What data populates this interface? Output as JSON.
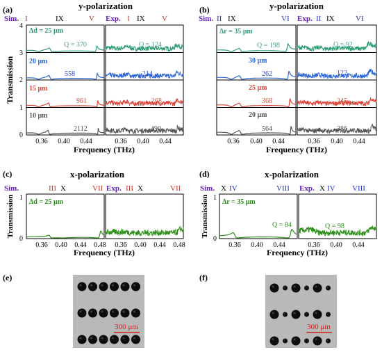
{
  "colors": {
    "sim_label": "#6a1fc2",
    "roman_red": "#c0392b",
    "roman_blue": "#2233bb",
    "q_teal": "#4a9d93",
    "q_blue": "#2747c9",
    "q_red": "#c8503a",
    "q_gray": "#4a4a4a",
    "series": [
      "#2e9e73",
      "#2e67d6",
      "#d8453a",
      "#555555"
    ],
    "x_green": "#2f8f1c",
    "bar_red": "#d42020",
    "photo_bg": "#b9b9b9"
  },
  "panels": {
    "a": {
      "letter": "(a)",
      "title": "y-polarization",
      "sim_tag": "Sim.",
      "exp_tag": "Exp.",
      "roman": [
        "I",
        "IX",
        "V"
      ],
      "ylabel": "Transmission",
      "xlabel": "Frequency (THz)",
      "yticks": [
        "0",
        "1",
        "2",
        "3",
        "4"
      ],
      "xticks": [
        "0.36",
        "0.40",
        "0.44"
      ],
      "offsets": [
        "Δd = 25 μm",
        "20 μm",
        "15 μm",
        "10 μm"
      ],
      "sim_q": [
        "Q = 370",
        "558",
        "961",
        "2112"
      ],
      "exp_q": [
        "Q = 124",
        "214",
        "268",
        "490"
      ]
    },
    "b": {
      "letter": "(b)",
      "title": "y-polarization",
      "sim_tag": "Sim.",
      "exp_tag": "Exp.",
      "roman": [
        "II",
        "IX",
        "VI"
      ],
      "xlabel": "Frequency (THz)",
      "xticks": [
        "0.36",
        "0.40",
        "0.44"
      ],
      "offsets": [
        "Δr = 35 μm",
        "30 μm",
        "25 μm",
        "20 μm"
      ],
      "sim_q": [
        "Q = 198",
        "262",
        "368",
        "564"
      ],
      "exp_q": [
        "Q = 92",
        "122",
        "245",
        "386"
      ]
    },
    "c": {
      "letter": "(c)",
      "title": "x-polarization",
      "sim_tag": "Sim.",
      "exp_tag": "Exp.",
      "roman": [
        "III",
        "X",
        "VII"
      ],
      "ylabel": "Transmission",
      "xlabel": "Frequency (THz)",
      "yticks": [
        "0",
        "1"
      ],
      "xticks": [
        "0.36",
        "0.40",
        "0.44",
        "0.48"
      ],
      "offset": "Δd = 25 μm"
    },
    "d": {
      "letter": "(d)",
      "title": "x-polarization",
      "sim_tag": "Sim.",
      "exp_tag": "Exp.",
      "roman": [
        "X",
        "IV",
        "VIII"
      ],
      "ylabel": "Transmission",
      "xlabel": "Frequency (THz)",
      "yticks": [
        "0",
        "1"
      ],
      "xticks": [
        "0.36",
        "0.40",
        "0.44"
      ],
      "offset": "Δr = 35 μm",
      "sim_q": "Q = 84",
      "exp_q": "Q = 98"
    },
    "e": {
      "letter": "(e)",
      "scale": "300 μm"
    },
    "f": {
      "letter": "(f)",
      "scale": "300 μm"
    }
  },
  "chart_data": [
    {
      "type": "line",
      "panel": "a",
      "title": "y-polarization",
      "xlabel": "Frequency (THz)",
      "ylabel": "Transmission",
      "xlim": [
        0.33,
        0.47
      ],
      "ylim": [
        0,
        4
      ],
      "series": [
        {
          "name": "Δd = 25 μm",
          "sim_resonances_THz": [
            0.353,
            0.373,
            0.456
          ],
          "Q_sim": 370,
          "Q_exp": 124
        },
        {
          "name": "20 μm",
          "sim_resonances_THz": [
            0.353,
            0.372,
            0.457
          ],
          "Q_sim": 558,
          "Q_exp": 214
        },
        {
          "name": "15 μm",
          "sim_resonances_THz": [
            0.353,
            0.371,
            0.458
          ],
          "Q_sim": 961,
          "Q_exp": 268
        },
        {
          "name": "10 μm",
          "sim_resonances_THz": [
            0.353,
            0.37,
            0.459
          ],
          "Q_sim": 2112,
          "Q_exp": 490
        }
      ]
    },
    {
      "type": "line",
      "panel": "b",
      "title": "y-polarization",
      "xlabel": "Frequency (THz)",
      "xlim": [
        0.33,
        0.47
      ],
      "ylim": [
        0,
        4
      ],
      "series": [
        {
          "name": "Δr = 35 μm",
          "sim_resonances_THz": [
            0.356,
            0.372,
            0.455
          ],
          "Q_sim": 198,
          "Q_exp": 92
        },
        {
          "name": "30 μm",
          "sim_resonances_THz": [
            0.356,
            0.372,
            0.457
          ],
          "Q_sim": 262,
          "Q_exp": 122
        },
        {
          "name": "25 μm",
          "sim_resonances_THz": [
            0.356,
            0.372,
            0.459
          ],
          "Q_sim": 368,
          "Q_exp": 245
        },
        {
          "name": "20 μm",
          "sim_resonances_THz": [
            0.356,
            0.372,
            0.461
          ],
          "Q_sim": 564,
          "Q_exp": 386
        }
      ]
    },
    {
      "type": "line",
      "panel": "c",
      "title": "x-polarization",
      "xlabel": "Frequency (THz)",
      "ylabel": "Transmission",
      "xlim": [
        0.33,
        0.49
      ],
      "ylim": [
        0,
        1
      ],
      "series": [
        {
          "name": "Δd = 25 μm",
          "sim_resonances_THz": [
            0.378,
            0.402,
            0.482
          ]
        }
      ]
    },
    {
      "type": "line",
      "panel": "d",
      "title": "x-polarization",
      "xlabel": "Frequency (THz)",
      "ylabel": "Transmission",
      "xlim": [
        0.33,
        0.47
      ],
      "ylim": [
        0,
        1
      ],
      "series": [
        {
          "name": "Δr = 35 μm",
          "sim_resonances_THz": [
            0.357,
            0.459
          ],
          "Q_sim": 84,
          "Q_exp": 98
        }
      ]
    }
  ]
}
